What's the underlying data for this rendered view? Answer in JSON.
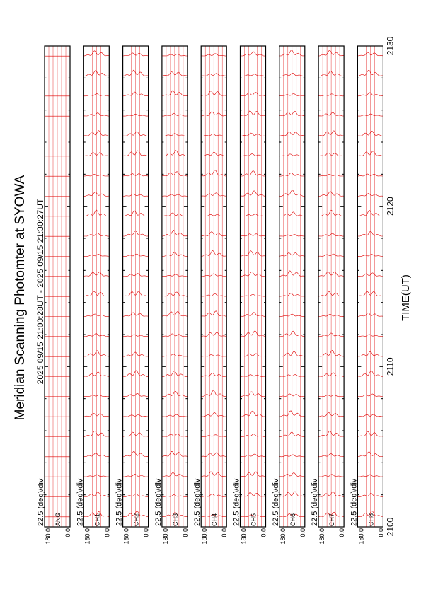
{
  "chart_data": {
    "type": "line",
    "title": "Meridian Scanning Photomter at SYOWA",
    "subtitle": "2025 09/15 21:00:28UT - 2025 09/15 21:30:27UT",
    "xlabel": "TIME(UT)",
    "x_ticks": [
      "2100",
      "2110",
      "2120",
      "2130"
    ],
    "xlim": [
      2100,
      2130
    ],
    "ylim": [
      0,
      180
    ],
    "y_ticks": [
      "180.0",
      "0.0"
    ],
    "scale_label": "22.5 (deg)/div",
    "series_color": "#e00000",
    "panels": [
      {
        "channel": "ANG",
        "profile": "flat"
      },
      {
        "channel": "CH1",
        "profile": "peaked"
      },
      {
        "channel": "CH2",
        "profile": "peaked"
      },
      {
        "channel": "CH3",
        "profile": "peaked"
      },
      {
        "channel": "CH4",
        "profile": "peaked"
      },
      {
        "channel": "CH5",
        "profile": "peaked"
      },
      {
        "channel": "CH6",
        "profile": "peaked"
      },
      {
        "channel": "CH7",
        "profile": "peaked"
      },
      {
        "channel": "CH8",
        "profile": "peaked"
      }
    ]
  }
}
